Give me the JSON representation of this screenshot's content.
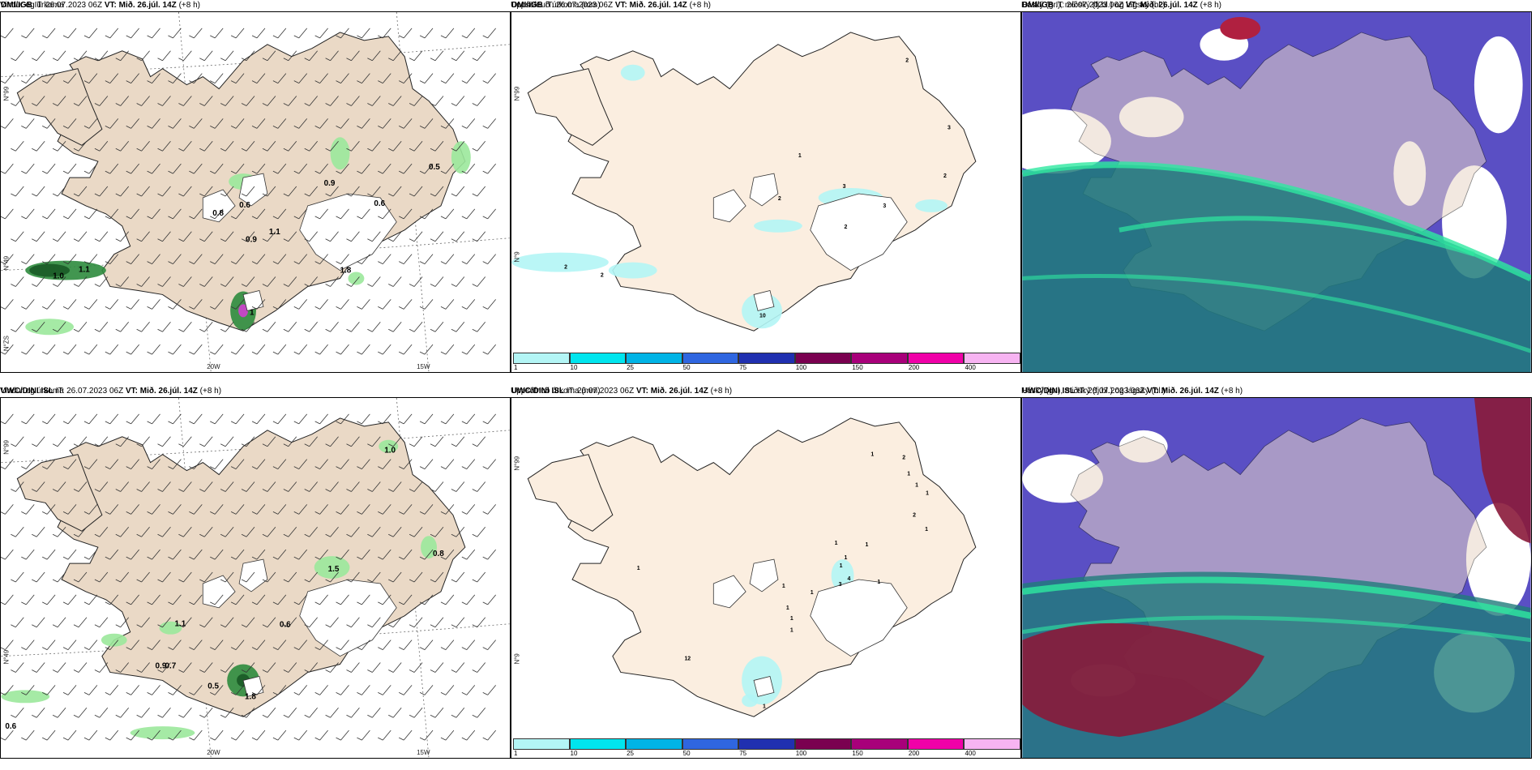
{
  "panels": [
    {
      "id": "p1",
      "model": "DMI/IGB",
      "it_label": "IT:",
      "it_value": "26.07.2023 06Z",
      "vt_label": "VT:",
      "vt_value": "Mið. 26.júl. 14Z",
      "lead": "(+8 h)",
      "title": "Vindur og úrkoma",
      "axis_left": [
        "N°99",
        "N°49",
        "N°ZS"
      ],
      "axis_bottom": [
        "20W",
        "15W"
      ],
      "values": [
        "0.5",
        "0.9",
        "0.6",
        "0.8",
        "0.6",
        "1.1",
        "0.9",
        "1.1",
        "1.0",
        "1.8",
        "1"
      ]
    },
    {
      "id": "p2",
      "model": "DMI/IGB",
      "it_label": "IT:",
      "it_value": "26.07.2023 06Z",
      "vt_label": "VT:",
      "vt_value": "Mið. 26.júl. 14Z",
      "lead": "(+8 h)",
      "title": "Uppsöfnuð úrkoma (mm)",
      "axis_left": [
        "N°99",
        "N°9"
      ],
      "values": [
        "2",
        "2",
        "1",
        "3",
        "2",
        "3",
        "2",
        "3",
        "2",
        "2",
        "10"
      ]
    },
    {
      "id": "p3",
      "model": "DMI/IGB",
      "it_label": "IT:",
      "it_value": "26.07.2023 06Z",
      "vt_label": "VT:",
      "vt_value": "Mið. 26.júl. 14Z",
      "lead": "(+8 h)",
      "title": "Háský (gr.), miðský (fj.bl.) og lágský (bl.)"
    },
    {
      "id": "p4",
      "model": "UWC/DINI ISL",
      "it_label": "IT:",
      "it_value": "26.07.2023 06Z",
      "vt_label": "VT:",
      "vt_value": "Mið. 26.júl. 14Z",
      "lead": "(+8 h)",
      "title": "Vindur og úrkoma",
      "axis_left": [
        "N°99",
        "N°49"
      ],
      "axis_bottom": [
        "20W",
        "15W"
      ],
      "values": [
        "1.0",
        "0.8",
        "1.5",
        "1.1",
        "0.6",
        "0.9",
        "0.7",
        "0.5",
        "1.8",
        "0.6"
      ]
    },
    {
      "id": "p5",
      "model": "UWC/DINI ISL",
      "it_label": "IT:",
      "it_value": "26.07.2023 06Z",
      "vt_label": "VT:",
      "vt_value": "Mið. 26.júl. 14Z",
      "lead": "(+8 h)",
      "title": "Uppsöfnuð úrkoma (mm)",
      "axis_left": [
        "N°99",
        "N°9"
      ],
      "values": [
        "1",
        "2",
        "1",
        "1",
        "1",
        "2",
        "1",
        "1",
        "1",
        "1",
        "1",
        "3",
        "4",
        "1",
        "1",
        "1",
        "1",
        "1",
        "1",
        "12",
        "1",
        "1"
      ]
    },
    {
      "id": "p6",
      "model": "UWC/DINI ISL",
      "it_label": "IT:",
      "it_value": "26.07.2023 06Z",
      "vt_label": "VT:",
      "vt_value": "Mið. 26.júl. 14Z",
      "lead": "(+8 h)",
      "title": "Háský (gr.), miðský (fj.bl.) og lágský (bl.)"
    }
  ],
  "colorbar": {
    "ticks": [
      "1",
      "10",
      "25",
      "50",
      "75",
      "100",
      "150",
      "200",
      "400"
    ],
    "colors": [
      "#b3f5f5",
      "#00e5ee",
      "#00b4e6",
      "#2f66e0",
      "#2030b0",
      "#7a0050",
      "#a8007a",
      "#f000a8",
      "#f7b4f2"
    ]
  }
}
